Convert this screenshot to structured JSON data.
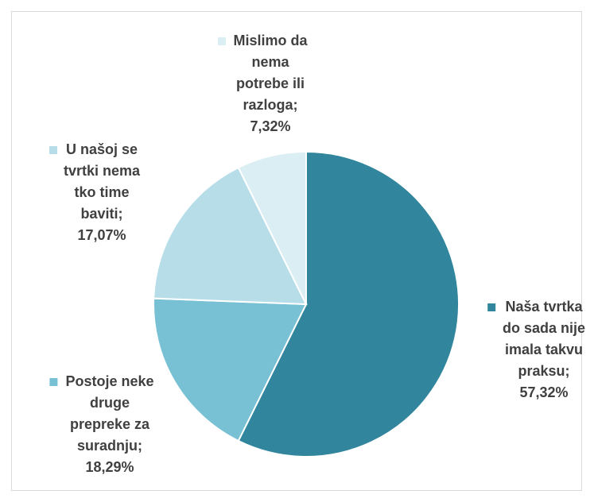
{
  "chart_data": {
    "type": "pie",
    "categories": [
      "Naša tvrtka do sada nije imala takvu praksu;",
      "Postoje neke druge prepreke za suradnju;",
      "U našoj se tvrtki nema tko time baviti;",
      "Mislimo da nema potrebe ili razloga;"
    ],
    "values": [
      57.32,
      18.29,
      17.07,
      7.32
    ],
    "value_labels": [
      "57,32%",
      "18,29%",
      "17,07%",
      "7,32%"
    ],
    "colors": [
      "#31859c",
      "#78c0d4",
      "#b6dde8",
      "#dbeef4"
    ]
  }
}
